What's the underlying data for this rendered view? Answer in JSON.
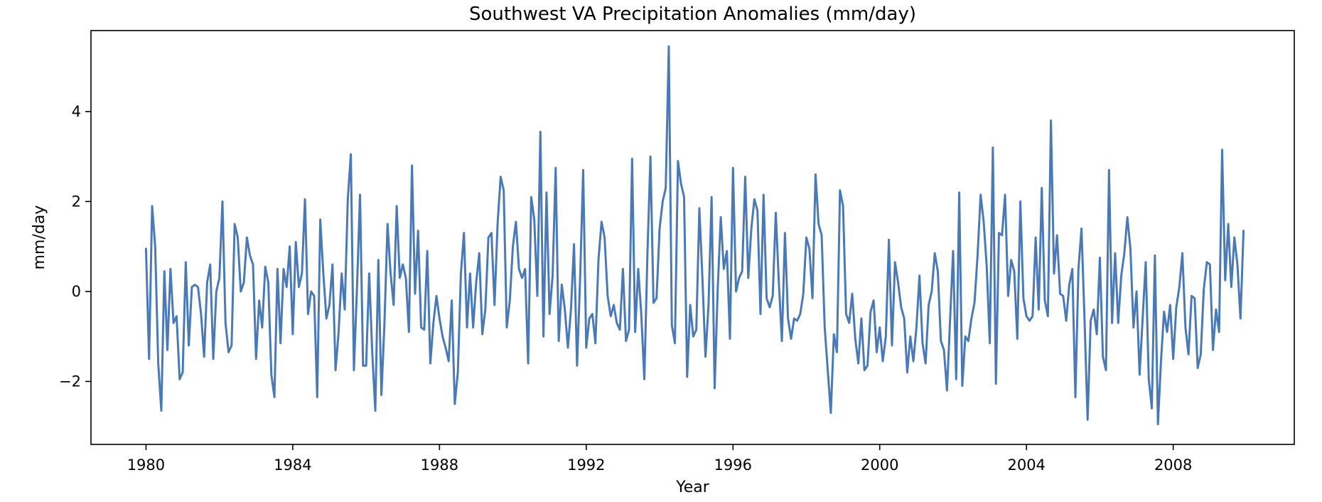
{
  "chart_data": {
    "type": "line",
    "title": "Southwest VA Precipitation Anomalies (mm/day)",
    "xlabel": "Year",
    "ylabel": "mm/day",
    "xlim": [
      1978.5,
      2011.3
    ],
    "ylim": [
      -3.4,
      5.8
    ],
    "x_ticks": [
      1980,
      1984,
      1988,
      1992,
      1996,
      2000,
      2004,
      2008
    ],
    "y_ticks": [
      -2,
      0,
      2,
      4
    ],
    "grid": false,
    "legend": "none",
    "series": [
      {
        "color": "#4a7ab5",
        "x_start": "1980-01",
        "x_step": "1 month",
        "values": [
          0.95,
          -1.5,
          1.9,
          1.0,
          -1.6,
          -2.65,
          0.45,
          -1.3,
          0.5,
          -0.7,
          -0.55,
          -1.95,
          -1.8,
          0.65,
          -1.2,
          0.1,
          0.15,
          0.1,
          -0.5,
          -1.45,
          0.2,
          0.6,
          -1.5,
          0.0,
          0.3,
          2.0,
          -0.7,
          -1.35,
          -1.2,
          1.5,
          1.2,
          0.0,
          0.2,
          1.2,
          0.8,
          0.6,
          -1.5,
          -0.2,
          -0.8,
          0.55,
          0.2,
          -1.85,
          -2.35,
          0.5,
          -1.15,
          0.5,
          0.1,
          1.0,
          -0.95,
          1.1,
          0.1,
          0.4,
          2.05,
          -0.5,
          0.0,
          -0.1,
          -2.35,
          1.6,
          0.4,
          -0.6,
          -0.3,
          0.6,
          -1.75,
          -0.9,
          0.4,
          -0.4,
          2.05,
          3.05,
          -1.75,
          0.05,
          2.15,
          -1.65,
          -1.65,
          0.4,
          -1.35,
          -2.65,
          0.7,
          -2.3,
          -0.7,
          1.5,
          0.4,
          -0.3,
          1.9,
          0.3,
          0.6,
          0.3,
          -0.9,
          2.8,
          -0.05,
          1.35,
          -0.8,
          -0.85,
          0.9,
          -1.6,
          -0.7,
          -0.1,
          -0.6,
          -1.0,
          -1.25,
          -1.55,
          -0.2,
          -2.5,
          -1.8,
          0.4,
          1.3,
          -0.8,
          0.4,
          -0.8,
          0.2,
          0.85,
          -0.95,
          -0.4,
          1.2,
          1.3,
          -0.3,
          1.5,
          2.55,
          2.25,
          -0.8,
          -0.2,
          1.0,
          1.55,
          0.5,
          0.3,
          0.5,
          -1.6,
          2.1,
          1.6,
          -0.1,
          3.55,
          -1.0,
          2.2,
          -0.5,
          0.35,
          2.75,
          -1.1,
          0.15,
          -0.4,
          -1.25,
          -0.4,
          1.05,
          -1.65,
          0.3,
          2.7,
          -1.25,
          -0.6,
          -0.5,
          -1.15,
          0.7,
          1.55,
          1.2,
          -0.1,
          -0.55,
          -0.3,
          -0.7,
          -0.85,
          0.5,
          -1.1,
          -0.85,
          2.95,
          -0.9,
          0.5,
          -0.5,
          -1.95,
          0.8,
          3.0,
          -0.25,
          -0.15,
          1.4,
          2.0,
          2.3,
          5.45,
          -0.75,
          -1.15,
          2.9,
          2.4,
          2.1,
          -1.9,
          -0.3,
          -1.0,
          -0.85,
          1.85,
          0.3,
          -1.45,
          -0.3,
          2.1,
          -2.15,
          0.05,
          1.65,
          0.5,
          0.9,
          -1.05,
          2.75,
          0.0,
          0.3,
          0.45,
          2.55,
          0.3,
          1.4,
          2.05,
          1.8,
          -0.5,
          2.15,
          -0.15,
          -0.35,
          -0.1,
          1.75,
          0.2,
          -1.1,
          1.3,
          -0.6,
          -1.05,
          -0.6,
          -0.65,
          -0.5,
          -0.05,
          1.2,
          0.95,
          -0.15,
          2.6,
          1.5,
          1.25,
          -0.8,
          -1.75,
          -2.7,
          -0.95,
          -1.35,
          2.25,
          1.9,
          -0.5,
          -0.7,
          -0.05,
          -1.05,
          -1.6,
          -0.6,
          -1.75,
          -1.65,
          -0.45,
          -0.2,
          -1.35,
          -0.8,
          -1.55,
          -1.0,
          1.15,
          -1.2,
          0.65,
          0.2,
          -0.35,
          -0.6,
          -1.8,
          -1.0,
          -1.55,
          -0.8,
          0.35,
          -1.15,
          -1.6,
          -0.3,
          0.0,
          0.85,
          0.45,
          -1.1,
          -1.3,
          -2.2,
          -0.65,
          0.9,
          -1.95,
          2.2,
          -2.1,
          -1.0,
          -1.1,
          -0.6,
          -0.25,
          0.8,
          2.15,
          1.55,
          0.55,
          -1.15,
          3.2,
          -2.05,
          1.3,
          1.25,
          2.15,
          -0.1,
          0.7,
          0.45,
          -1.05,
          2.0,
          -0.15,
          -0.55,
          -0.65,
          -0.55,
          1.2,
          -0.4,
          2.3,
          -0.2,
          -0.55,
          3.8,
          0.4,
          1.25,
          -0.05,
          -0.1,
          -0.65,
          0.15,
          0.5,
          -2.35,
          0.5,
          1.4,
          -0.65,
          -2.85,
          -0.65,
          -0.4,
          -0.95,
          0.75,
          -1.45,
          -1.75,
          2.7,
          -0.7,
          0.85,
          -0.7,
          0.35,
          0.85,
          1.65,
          0.95,
          -0.8,
          0.0,
          -1.85,
          -0.6,
          0.65,
          -1.95,
          -2.6,
          0.8,
          -2.95,
          -1.55,
          -0.45,
          -0.9,
          -0.3,
          -1.5,
          -0.35,
          0.1,
          0.85,
          -0.8,
          -1.4,
          -0.1,
          -0.15,
          -1.7,
          -1.4,
          0.05,
          0.65,
          0.6,
          -1.3,
          -0.4,
          -0.9,
          3.15,
          0.25,
          1.5,
          0.1,
          1.2,
          0.6,
          -0.6,
          1.35
        ]
      }
    ]
  }
}
